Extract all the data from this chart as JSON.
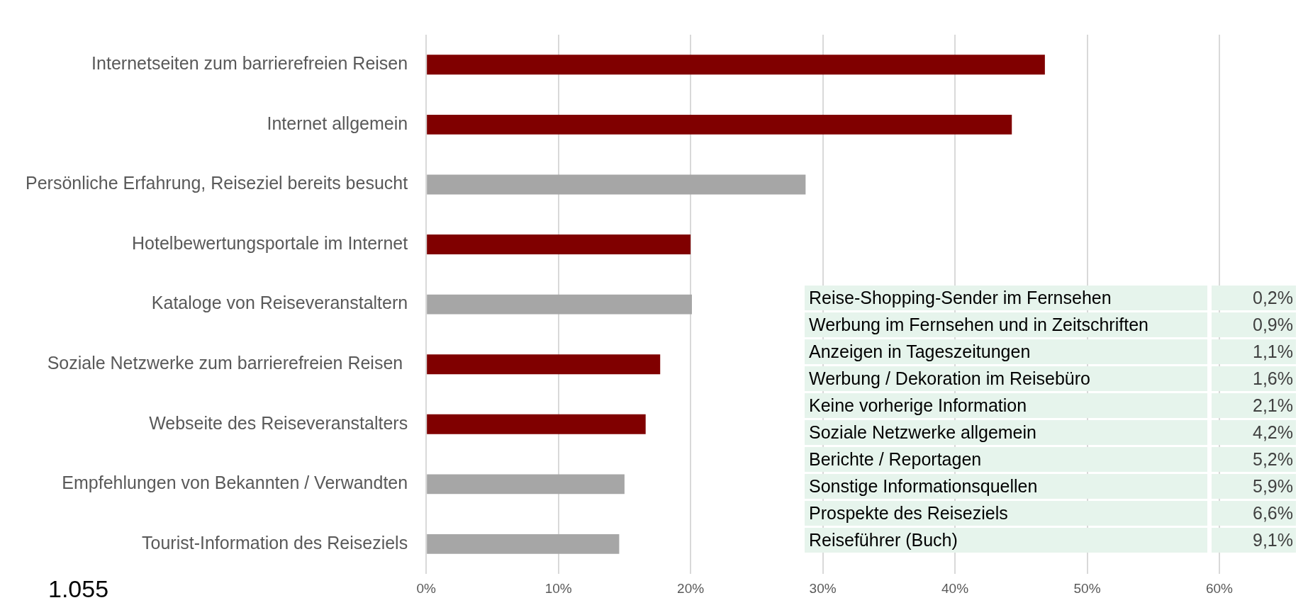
{
  "chart_data": [
    {
      "type": "bar",
      "orientation": "horizontal",
      "categories": [
        "Internetseiten zum barrierefreien Reisen",
        "Internet allgemein",
        "Persönliche Erfahrung, Reiseziel bereits besucht",
        "Hotelbewertungsportale im Internet",
        "Kataloge von Reiseveranstaltern",
        "Soziale Netzwerke zum barrierefreien Reisen ",
        "Webseite des Reiseveranstalters",
        "Empfehlungen von Bekannten / Verwandten",
        "Tourist-Information des Reiseziels"
      ],
      "values": [
        46.8,
        44.3,
        28.7,
        20.0,
        20.1,
        17.7,
        16.6,
        15.0,
        14.6
      ],
      "colors": [
        "#800000",
        "#800000",
        "#a6a6a6",
        "#800000",
        "#a6a6a6",
        "#800000",
        "#800000",
        "#a6a6a6",
        "#a6a6a6"
      ],
      "xlim": [
        0,
        60
      ],
      "xticks": [
        {
          "value": 0,
          "label": "0%"
        },
        {
          "value": 10,
          "label": "10%"
        },
        {
          "value": 20,
          "label": "20%"
        },
        {
          "value": 30,
          "label": "30%"
        },
        {
          "value": 40,
          "label": "40%"
        },
        {
          "value": 50,
          "label": "50%"
        },
        {
          "value": 60,
          "label": "60%"
        }
      ],
      "grid": "x",
      "legend": false,
      "annotations": [
        "1.055"
      ]
    },
    {
      "type": "other",
      "categories": [
        "Reise-Shopping-Sender im Fernsehen",
        "Werbung im Fernsehen und in Zeitschriften",
        "Anzeigen in Tageszeitungen",
        "Werbung / Dekoration im Reisebüro",
        "Keine vorherige Information",
        "Soziale Netzwerke allgemein",
        "Berichte / Reportagen",
        "Sonstige Informationsquellen",
        "Prospekte des Reiseziels",
        "Reiseführer (Buch)"
      ],
      "value_labels": [
        "0,2%",
        "0,9%",
        "1,1%",
        "1,6%",
        "2,1%",
        "4,2%",
        "5,2%",
        "5,9%",
        "6,6%",
        "9,1%"
      ],
      "color": "#e6f4ec"
    }
  ]
}
